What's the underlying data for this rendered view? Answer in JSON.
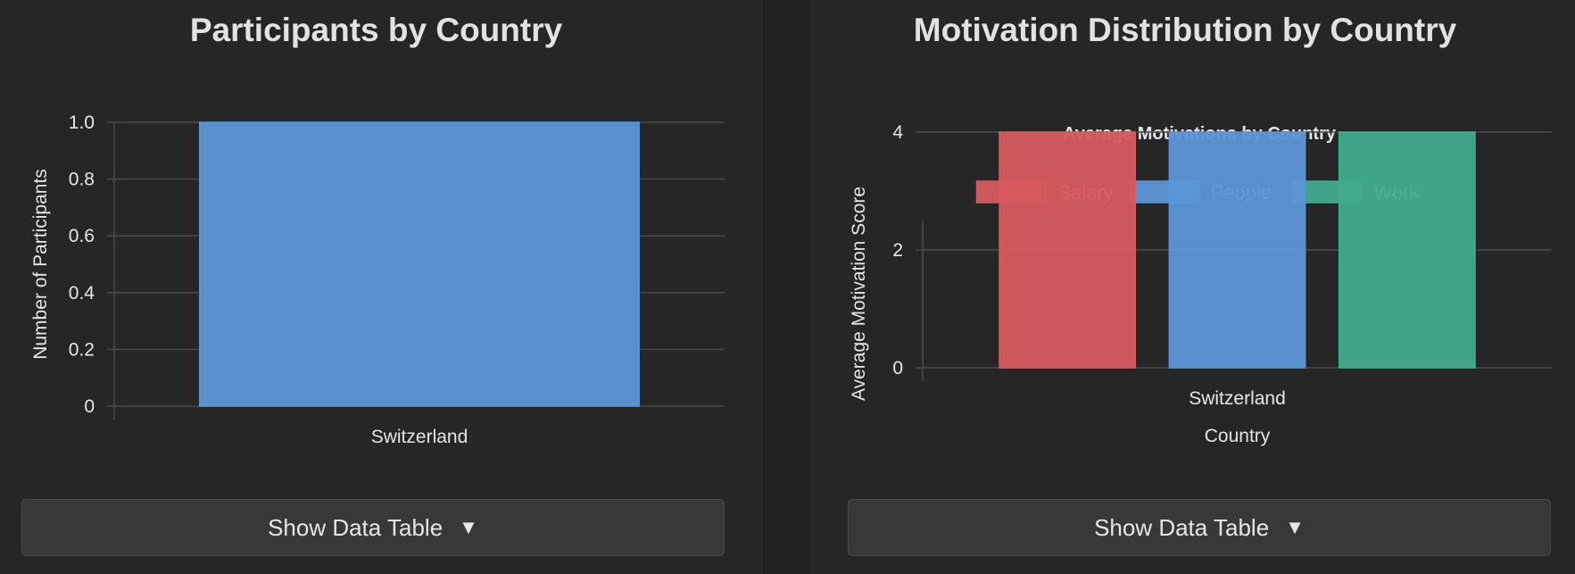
{
  "panels": {
    "left": {
      "title": "Participants by Country",
      "button_label": "Show Data Table",
      "button_arrow": "▼"
    },
    "right": {
      "title": "Motivation Distribution by Country",
      "button_label": "Show Data Table",
      "button_arrow": "▼"
    }
  },
  "colors": {
    "panel_bg": "#262626",
    "grid": "#4a4a4a",
    "people": "#5b96d6",
    "salary": "#d65b5e",
    "work": "#40ab8d"
  },
  "chart_data": [
    {
      "type": "bar",
      "title": "",
      "categories": [
        "Switzerland"
      ],
      "values": [
        1
      ],
      "xlabel": "",
      "ylabel": "Number of Participants",
      "ylim": [
        0,
        1
      ],
      "yticks": [
        "0",
        "0.2",
        "0.4",
        "0.6",
        "0.8",
        "1.0"
      ],
      "grid": true,
      "legend": "none",
      "color": "#5b96d6"
    },
    {
      "type": "bar",
      "title": "Average Motivations by Country",
      "categories": [
        "Switzerland"
      ],
      "series": [
        {
          "name": "Salary",
          "values": [
            4
          ],
          "color": "#d65b5e"
        },
        {
          "name": "People",
          "values": [
            4
          ],
          "color": "#5b96d6"
        },
        {
          "name": "Work",
          "values": [
            4
          ],
          "color": "#40ab8d"
        }
      ],
      "xlabel": "Country",
      "ylabel": "Average Motivation Score",
      "ylim": [
        0,
        5
      ],
      "yticks": [
        "0",
        "2",
        "4"
      ],
      "grid": true,
      "legend": "top"
    }
  ]
}
